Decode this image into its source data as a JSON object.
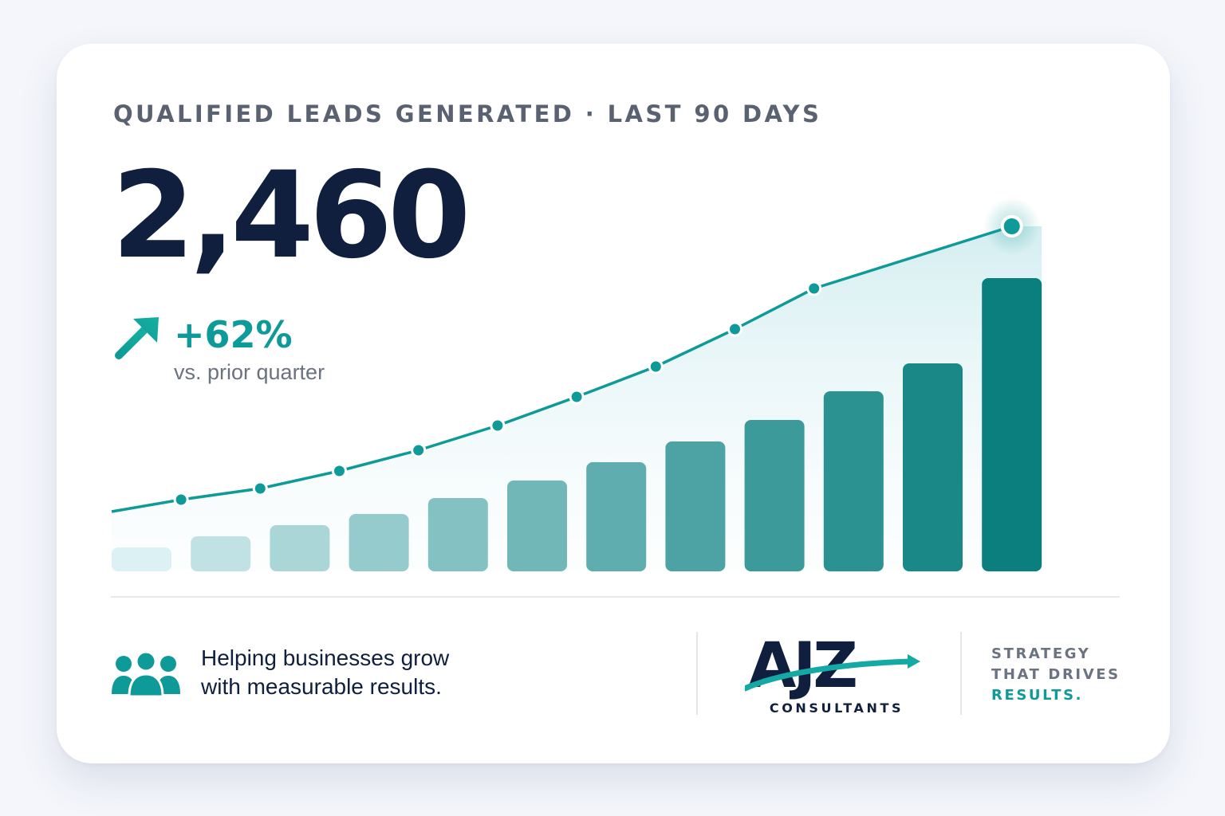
{
  "kpi": {
    "title": "QUALIFIED LEADS GENERATED · LAST 90 DAYS",
    "value": "2,460",
    "change": "+62%",
    "change_caption": "vs. prior quarter",
    "trend_icon": "arrow-up-right-icon"
  },
  "footer": {
    "icon": "team-icon",
    "tagline_line1": "Helping businesses grow",
    "tagline_line2": "with measurable results.",
    "logo": {
      "mark": "AJZ",
      "name": "CONSULTANTS"
    },
    "slogan": {
      "line1": "STRATEGY",
      "line2": "THAT DRIVES",
      "line3": "RESULTS."
    }
  },
  "colors": {
    "navy": "#0f1f3d",
    "teal": "#0e9a98",
    "bar_light": "#dcf1f4",
    "bar_dark": "#0a7f7e",
    "muted": "#6b7280"
  },
  "chart_data": {
    "type": "bar",
    "series": [
      {
        "type": "bar",
        "values": [
          30,
          44,
          58,
          72,
          92,
          114,
          137,
          163,
          190,
          226,
          261,
          368
        ]
      },
      {
        "type": "line",
        "values": [
          75,
          90,
          104,
          126,
          152,
          183,
          219,
          257,
          304,
          355,
          433
        ]
      }
    ],
    "ylim": [
      0,
      470
    ],
    "grid": false,
    "legend": "none"
  }
}
